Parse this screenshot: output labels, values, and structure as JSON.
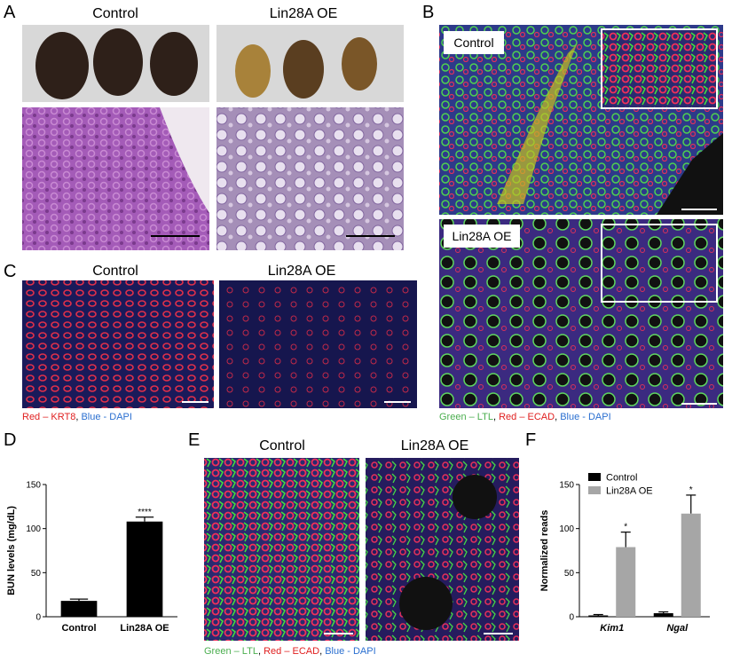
{
  "panel_labels": [
    "A",
    "B",
    "C",
    "D",
    "E",
    "F"
  ],
  "panel_a": {
    "titles": [
      "Control",
      "Lin28A OE"
    ]
  },
  "panel_b": {
    "labels": [
      "Control",
      "Lin28A OE"
    ],
    "caption": [
      "Green – LTL",
      ", ",
      "Red – ECAD",
      ", ",
      "Blue - DAPI"
    ]
  },
  "panel_c": {
    "titles": [
      "Control",
      "Lin28A OE"
    ],
    "caption": [
      "Red – KRT8",
      ", ",
      "Blue - DAPI"
    ]
  },
  "panel_e": {
    "titles": [
      "Control",
      "Lin28A OE"
    ],
    "caption": [
      "Green – LTL",
      ", ",
      "Red – ECAD",
      ", ",
      "Blue - DAPI"
    ]
  },
  "chart_data": [
    {
      "type": "bar",
      "ylabel": "BUN levels (mg/dL)",
      "categories": [
        "Control",
        "Lin28A OE"
      ],
      "values": [
        18,
        108
      ],
      "errors": [
        2,
        5
      ],
      "color": "#000000",
      "ylim": [
        0,
        150
      ],
      "yticks": [
        0,
        50,
        100,
        150
      ],
      "annotations": [
        "****"
      ]
    },
    {
      "type": "bar",
      "ylabel": "Normalized reads",
      "categories": [
        "Kim1",
        "Ngal"
      ],
      "series": [
        {
          "name": "Control",
          "color": "#000000",
          "values": [
            1.5,
            4
          ],
          "errors": [
            1,
            1.5
          ]
        },
        {
          "name": "Lin28A OE",
          "color": "#a6a6a6",
          "values": [
            79,
            117
          ],
          "errors": [
            17,
            21
          ]
        }
      ],
      "ylim": [
        0,
        150
      ],
      "yticks": [
        0,
        50,
        100,
        150
      ],
      "legend": "upper left",
      "annotations": [
        "*",
        "*"
      ]
    }
  ]
}
